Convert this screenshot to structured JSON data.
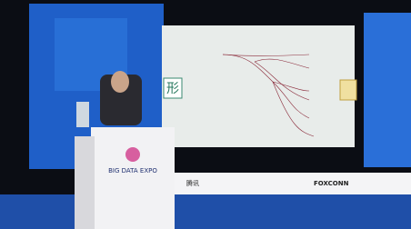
{
  "screen": {
    "left_char": "形"
  },
  "podium": {
    "logo": "BIG DATA EXPO"
  },
  "sponsors": [
    "腾讯",
    "FOXCONN"
  ]
}
